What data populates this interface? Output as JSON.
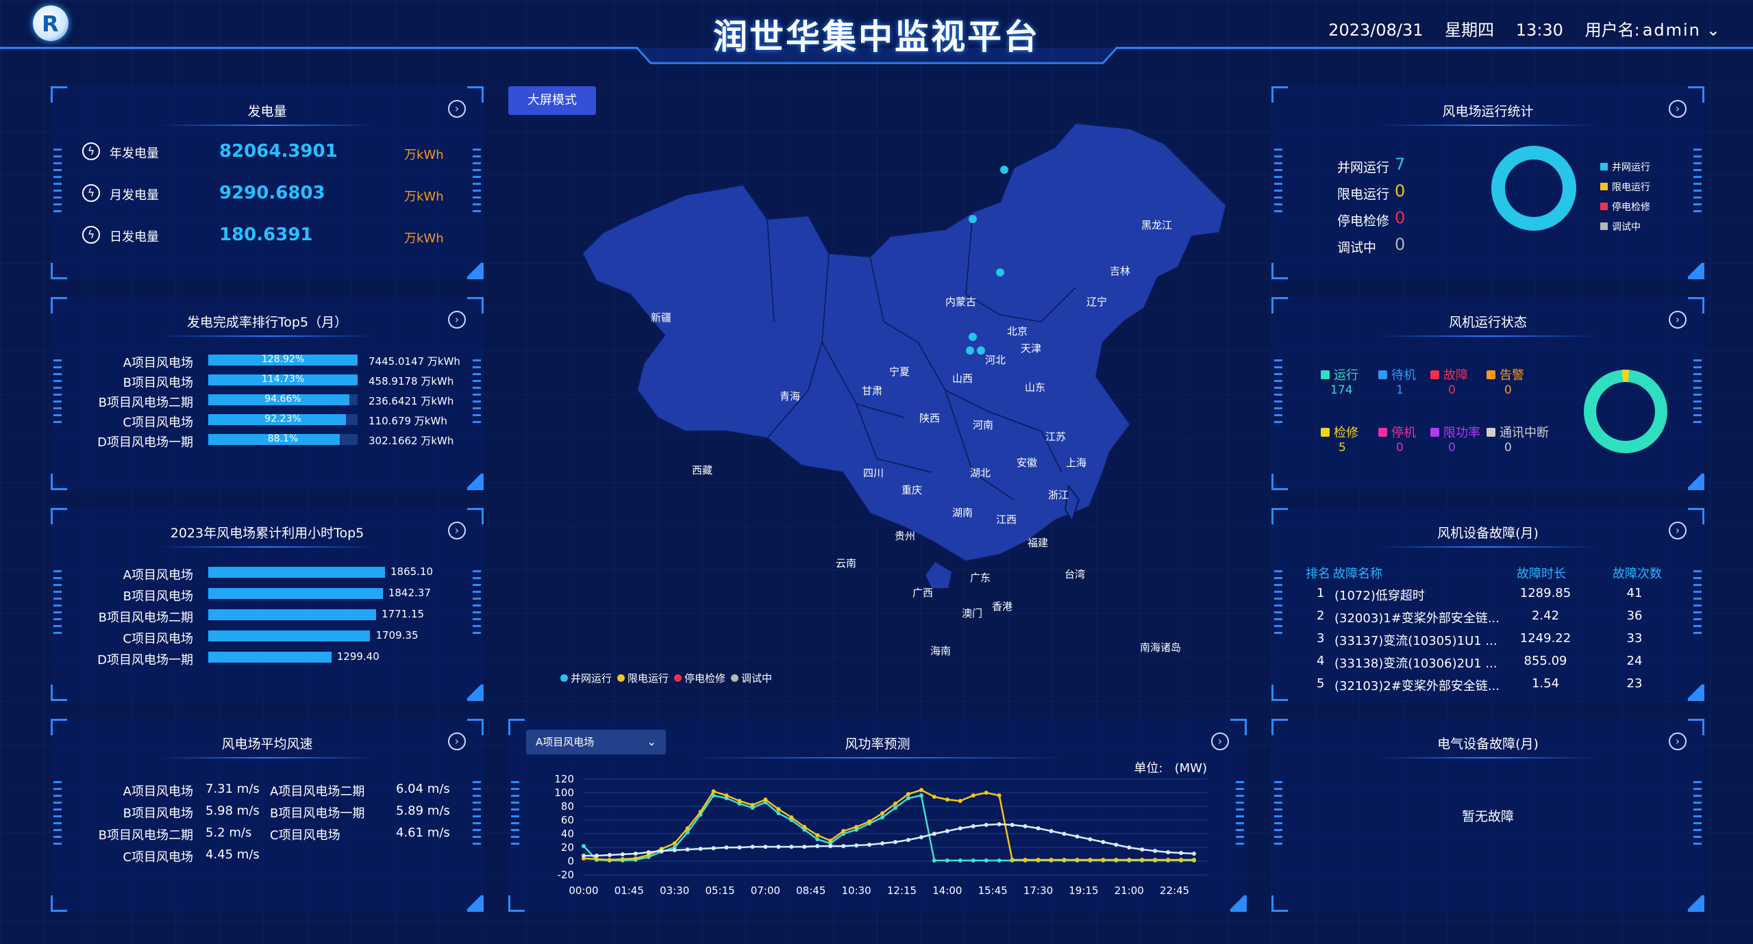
{
  "header": {
    "title": "润世华集中监视平台",
    "date": "2023/08/31",
    "weekday": "星期四",
    "time": "13:30",
    "user_label": "用户名:",
    "user_name": "admin"
  },
  "generation": {
    "title": "发电量",
    "items": [
      {
        "label": "年发电量",
        "value": "82064.3901",
        "unit": "万kWh"
      },
      {
        "label": "月发电量",
        "value": "9290.6803",
        "unit": "万kWh"
      },
      {
        "label": "日发电量",
        "value": "180.6391",
        "unit": "万kWh"
      }
    ]
  },
  "completion": {
    "title": "发电完成率排行Top5（月）",
    "items": [
      {
        "name": "A项目风电场",
        "pct_label": "128.92%",
        "fill": 1.0,
        "value": "7445.0147 万kWh"
      },
      {
        "name": "B项目风电场",
        "pct_label": "114.73%",
        "fill": 1.0,
        "value": "458.9178 万kWh"
      },
      {
        "name": "B项目风电场二期",
        "pct_label": "94.66%",
        "fill": 0.9466,
        "value": "236.6421 万kWh"
      },
      {
        "name": "C项目风电场",
        "pct_label": "92.23%",
        "fill": 0.9223,
        "value": "110.679 万kWh"
      },
      {
        "name": "D项目风电场一期",
        "pct_label": "88.1%",
        "fill": 0.881,
        "value": "302.1662 万kWh"
      }
    ]
  },
  "hours": {
    "title": "2023年风电场累计利用小时Top5",
    "max": 1865.1,
    "items": [
      {
        "name": "A项目风电场",
        "value": 1865.1,
        "label": "1865.10"
      },
      {
        "name": "B项目风电场",
        "value": 1842.37,
        "label": "1842.37"
      },
      {
        "name": "B项目风电场二期",
        "value": 1771.15,
        "label": "1771.15"
      },
      {
        "name": "C项目风电场",
        "value": 1709.35,
        "label": "1709.35"
      },
      {
        "name": "D项目风电场一期",
        "value": 1299.4,
        "label": "1299.40"
      }
    ]
  },
  "wind_speed": {
    "title": "风电场平均风速",
    "left": [
      {
        "name": "A项目风电场",
        "value": "7.31 m/s"
      },
      {
        "name": "B项目风电场",
        "value": "5.98 m/s"
      },
      {
        "name": "B项目风电场二期",
        "value": "5.2 m/s"
      },
      {
        "name": "C项目风电场",
        "value": "4.45 m/s"
      }
    ],
    "right": [
      {
        "name": "A项目风电场二期",
        "value": "6.04 m/s"
      },
      {
        "name": "B项目风电场一期",
        "value": "5.89 m/s"
      },
      {
        "name": "C项目风电场",
        "value": "4.61 m/s"
      }
    ]
  },
  "map": {
    "mode_button": "大屏模式",
    "provinces": [
      "黑龙江",
      "吉林",
      "辽宁",
      "内蒙古",
      "北京",
      "天津",
      "河北",
      "新疆",
      "宁夏",
      "山西",
      "山东",
      "青海",
      "甘肃",
      "陕西",
      "河南",
      "江苏",
      "上海",
      "西藏",
      "四川",
      "湖北",
      "安徽",
      "浙江",
      "重庆",
      "湖南",
      "江西",
      "贵州",
      "福建",
      "云南",
      "台湾",
      "广西",
      "广东",
      "香港",
      "澳门",
      "海南",
      "南海诸岛"
    ],
    "legend": [
      {
        "label": "并网运行",
        "color": "#27c5e8"
      },
      {
        "label": "限电运行",
        "color": "#f5c518"
      },
      {
        "label": "停电检修",
        "color": "#f0304d"
      },
      {
        "label": "调试中",
        "color": "#b5b5b5"
      }
    ]
  },
  "farm_stats": {
    "title": "风电场运行统计",
    "items": [
      {
        "label": "并网运行",
        "value": "7",
        "color": "#27c5e8"
      },
      {
        "label": "限电运行",
        "value": "0",
        "color": "#f5c518"
      },
      {
        "label": "停电检修",
        "value": "0",
        "color": "#f0304d"
      },
      {
        "label": "调试中",
        "value": "0",
        "color": "#b5b5b5"
      }
    ],
    "legend": [
      {
        "label": "并网运行",
        "color": "#27c5e8"
      },
      {
        "label": "限电运行",
        "color": "#f5c518"
      },
      {
        "label": "停电检修",
        "color": "#f0304d"
      },
      {
        "label": "调试中",
        "color": "#b5b5b5"
      }
    ]
  },
  "turbine_status": {
    "title": "风机运行状态",
    "items": [
      {
        "label": "运行",
        "value": "174",
        "color": "#2ee0c0"
      },
      {
        "label": "待机",
        "value": "1",
        "color": "#2d9cf0"
      },
      {
        "label": "故障",
        "value": "0",
        "color": "#f0304d"
      },
      {
        "label": "告警",
        "value": "0",
        "color": "#f59a1b"
      },
      {
        "label": "检修",
        "value": "5",
        "color": "#f5d418"
      },
      {
        "label": "停机",
        "value": "0",
        "color": "#f02fa0"
      },
      {
        "label": "限功率",
        "value": "0",
        "color": "#b43af0"
      },
      {
        "label": "通讯中断",
        "value": "0",
        "color": "#cfcfcf"
      }
    ]
  },
  "faults": {
    "title": "风机设备故障(月)",
    "headers": [
      "排名",
      "故障名称",
      "故障时长",
      "故障次数"
    ],
    "rows": [
      {
        "rank": "1",
        "name": "(1072)低穿超时",
        "duration": "1289.85",
        "count": "41"
      },
      {
        "rank": "2",
        "name": "(32003)1#变桨外部安全链...",
        "duration": "2.42",
        "count": "36"
      },
      {
        "rank": "3",
        "name": "(33137)变流(10305)1U1 ...",
        "duration": "1249.22",
        "count": "33"
      },
      {
        "rank": "4",
        "name": "(33138)变流(10306)2U1 ...",
        "duration": "855.09",
        "count": "24"
      },
      {
        "rank": "5",
        "name": "(32103)2#变桨外部安全链...",
        "duration": "1.54",
        "count": "23"
      }
    ]
  },
  "electrical": {
    "title": "电气设备故障(月)",
    "empty_text": "暂无故障"
  },
  "forecast": {
    "title": "风功率预测",
    "select_value": "A项目风电场",
    "unit_label": "单位:",
    "unit": "(MW)"
  },
  "chart_data": {
    "type": "line",
    "ylim": [
      -20,
      120
    ],
    "yticks": [
      120,
      100,
      80,
      60,
      40,
      20,
      0,
      -20
    ],
    "xticks": [
      "00:00",
      "01:45",
      "03:30",
      "05:15",
      "07:00",
      "08:45",
      "10:30",
      "12:15",
      "14:00",
      "15:45",
      "17:30",
      "19:15",
      "21:00",
      "22:45"
    ],
    "x_hours": [
      0,
      0.5,
      1,
      1.5,
      2,
      2.5,
      3,
      3.5,
      4,
      4.5,
      5,
      5.5,
      6,
      6.5,
      7,
      7.5,
      8,
      8.5,
      9,
      9.5,
      10,
      10.5,
      11,
      11.5,
      12,
      12.5,
      13,
      13.5,
      14,
      14.5,
      15,
      15.5,
      16,
      16.5,
      17,
      17.5,
      18,
      18.5,
      19,
      19.5,
      20,
      20.5,
      21,
      21.5,
      22,
      22.5,
      23,
      23.5
    ],
    "series": [
      {
        "color": "#3fe0d0",
        "values": [
          22,
          2,
          1,
          1,
          2,
          6,
          14,
          20,
          42,
          68,
          96,
          92,
          84,
          78,
          86,
          70,
          60,
          46,
          32,
          26,
          40,
          46,
          55,
          64,
          78,
          92,
          96,
          1,
          1,
          1,
          1,
          1,
          1,
          1,
          1,
          1,
          1,
          1,
          1,
          1,
          1,
          1,
          1,
          1,
          1,
          1,
          1,
          1
        ]
      },
      {
        "color": "#f5c518",
        "values": [
          4,
          3,
          2,
          3,
          4,
          9,
          18,
          26,
          48,
          72,
          102,
          96,
          88,
          82,
          90,
          76,
          64,
          50,
          38,
          30,
          44,
          50,
          58,
          70,
          84,
          98,
          104,
          94,
          90,
          88,
          96,
          100,
          96,
          2,
          2,
          2,
          2,
          2,
          2,
          2,
          2,
          2,
          2,
          2,
          2,
          2,
          2,
          2
        ]
      },
      {
        "color": "#d8ecff",
        "values": [
          8,
          8,
          9,
          10,
          11,
          13,
          15,
          16,
          17,
          18,
          19,
          20,
          20,
          21,
          21,
          21,
          21,
          21,
          22,
          22,
          22,
          23,
          24,
          26,
          28,
          31,
          35,
          40,
          44,
          48,
          51,
          53,
          54,
          53,
          51,
          48,
          44,
          40,
          36,
          32,
          28,
          24,
          20,
          17,
          15,
          13,
          12,
          11
        ]
      }
    ]
  }
}
